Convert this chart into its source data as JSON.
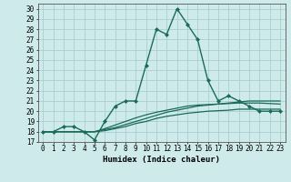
{
  "xlabel": "Humidex (Indice chaleur)",
  "bg_color": "#ceeaea",
  "grid_color": "#aacece",
  "line_color": "#1a6b5a",
  "xlim": [
    -0.5,
    23.5
  ],
  "ylim": [
    17,
    30.5
  ],
  "xticks": [
    0,
    1,
    2,
    3,
    4,
    5,
    6,
    7,
    8,
    9,
    10,
    11,
    12,
    13,
    14,
    15,
    16,
    17,
    18,
    19,
    20,
    21,
    22,
    23
  ],
  "yticks": [
    17,
    18,
    19,
    20,
    21,
    22,
    23,
    24,
    25,
    26,
    27,
    28,
    29,
    30
  ],
  "series": [
    {
      "x": [
        0,
        1,
        2,
        3,
        4,
        5,
        6,
        7,
        8,
        9,
        10,
        11,
        12,
        13,
        14,
        15,
        16,
        17,
        18,
        19,
        20,
        21,
        22,
        23
      ],
      "y": [
        18,
        18,
        18.5,
        18.5,
        18,
        17.2,
        19,
        20.5,
        21,
        21,
        24.5,
        28,
        27.5,
        30,
        28.5,
        27,
        23,
        21,
        21.5,
        21,
        20.5,
        20,
        20,
        20
      ],
      "marker": "D",
      "markersize": 2,
      "linewidth": 1.0
    },
    {
      "x": [
        0,
        1,
        2,
        3,
        4,
        5,
        6,
        7,
        8,
        9,
        10,
        11,
        12,
        13,
        14,
        15,
        16,
        17,
        18,
        19,
        20,
        21,
        22,
        23
      ],
      "y": [
        18,
        18,
        18,
        18,
        18,
        18,
        18.2,
        18.4,
        18.7,
        19.0,
        19.3,
        19.6,
        19.9,
        20.1,
        20.3,
        20.5,
        20.6,
        20.7,
        20.8,
        20.9,
        21.0,
        21.0,
        21.0,
        21.0
      ],
      "marker": null,
      "linewidth": 0.9
    },
    {
      "x": [
        0,
        1,
        2,
        3,
        4,
        5,
        6,
        7,
        8,
        9,
        10,
        11,
        12,
        13,
        14,
        15,
        16,
        17,
        18,
        19,
        20,
        21,
        22,
        23
      ],
      "y": [
        18,
        18,
        18,
        18,
        18,
        18,
        18.3,
        18.65,
        19.0,
        19.35,
        19.65,
        19.9,
        20.1,
        20.3,
        20.5,
        20.6,
        20.65,
        20.7,
        20.75,
        20.8,
        20.8,
        20.8,
        20.75,
        20.7
      ],
      "marker": null,
      "linewidth": 0.9
    },
    {
      "x": [
        0,
        1,
        2,
        3,
        4,
        5,
        6,
        7,
        8,
        9,
        10,
        11,
        12,
        13,
        14,
        15,
        16,
        17,
        18,
        19,
        20,
        21,
        22,
        23
      ],
      "y": [
        18,
        18,
        18,
        18,
        18,
        18,
        18.1,
        18.3,
        18.5,
        18.8,
        19.0,
        19.3,
        19.5,
        19.65,
        19.8,
        19.9,
        20.0,
        20.05,
        20.1,
        20.2,
        20.2,
        20.2,
        20.2,
        20.2
      ],
      "marker": null,
      "linewidth": 0.9
    }
  ]
}
